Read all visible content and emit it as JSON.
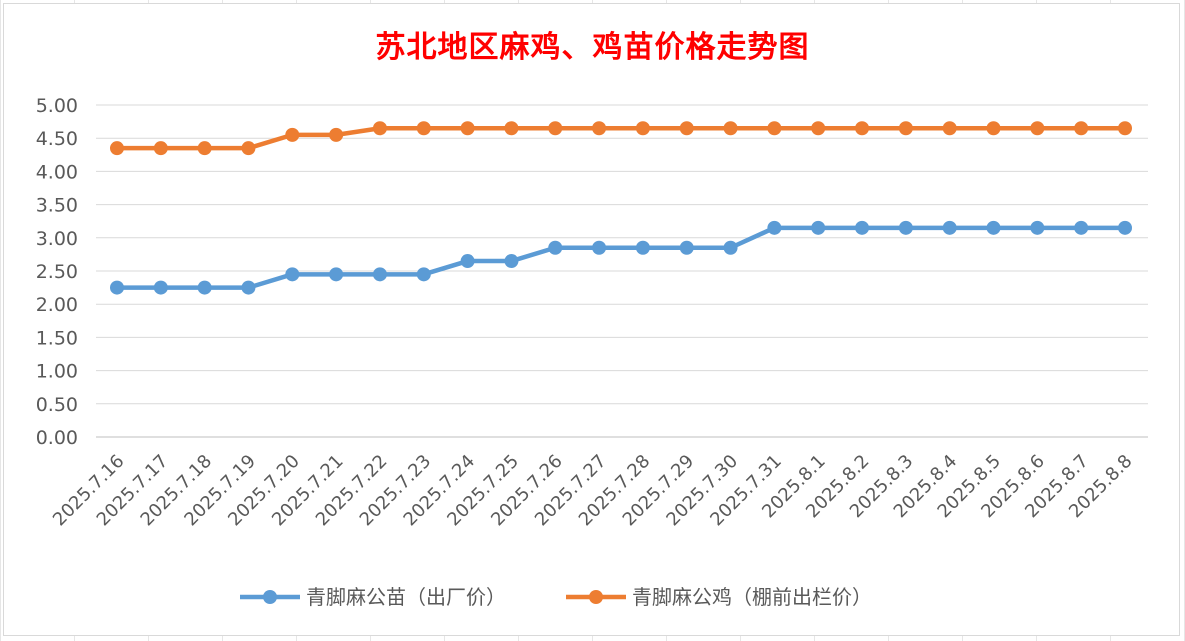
{
  "chart_data": {
    "type": "line",
    "title": "苏北地区麻鸡、鸡苗价格走势图",
    "xlabel": "",
    "ylabel": "",
    "ylim": [
      0,
      5
    ],
    "ytick_labels": [
      "0.00",
      "0.50",
      "1.00",
      "1.50",
      "2.00",
      "2.50",
      "3.00",
      "3.50",
      "4.00",
      "4.50",
      "5.00"
    ],
    "grid": "horizontal",
    "legend_position": "bottom",
    "categories": [
      "2025.7.16",
      "2025.7.17",
      "2025.7.18",
      "2025.7.19",
      "2025.7.20",
      "2025.7.21",
      "2025.7.22",
      "2025.7.23",
      "2025.7.24",
      "2025.7.25",
      "2025.7.26",
      "2025.7.27",
      "2025.7.28",
      "2025.7.29",
      "2025.7.30",
      "2025.7.31",
      "2025.8.1",
      "2025.8.2",
      "2025.8.3",
      "2025.8.4",
      "2025.8.5",
      "2025.8.6",
      "2025.8.7",
      "2025.8.8"
    ],
    "series": [
      {
        "name": "青脚麻公苗（出厂价）",
        "color": "#5b9bd5",
        "values": [
          2.25,
          2.25,
          2.25,
          2.25,
          2.45,
          2.45,
          2.45,
          2.45,
          2.65,
          2.65,
          2.85,
          2.85,
          2.85,
          2.85,
          2.85,
          3.15,
          3.15,
          3.15,
          3.15,
          3.15,
          3.15,
          3.15,
          3.15,
          3.15
        ]
      },
      {
        "name": "青脚麻公鸡（棚前出栏价）",
        "color": "#ed7d31",
        "values": [
          4.35,
          4.35,
          4.35,
          4.35,
          4.55,
          4.55,
          4.65,
          4.65,
          4.65,
          4.65,
          4.65,
          4.65,
          4.65,
          4.65,
          4.65,
          4.65,
          4.65,
          4.65,
          4.65,
          4.65,
          4.65,
          4.65,
          4.65,
          4.65
        ]
      }
    ]
  }
}
